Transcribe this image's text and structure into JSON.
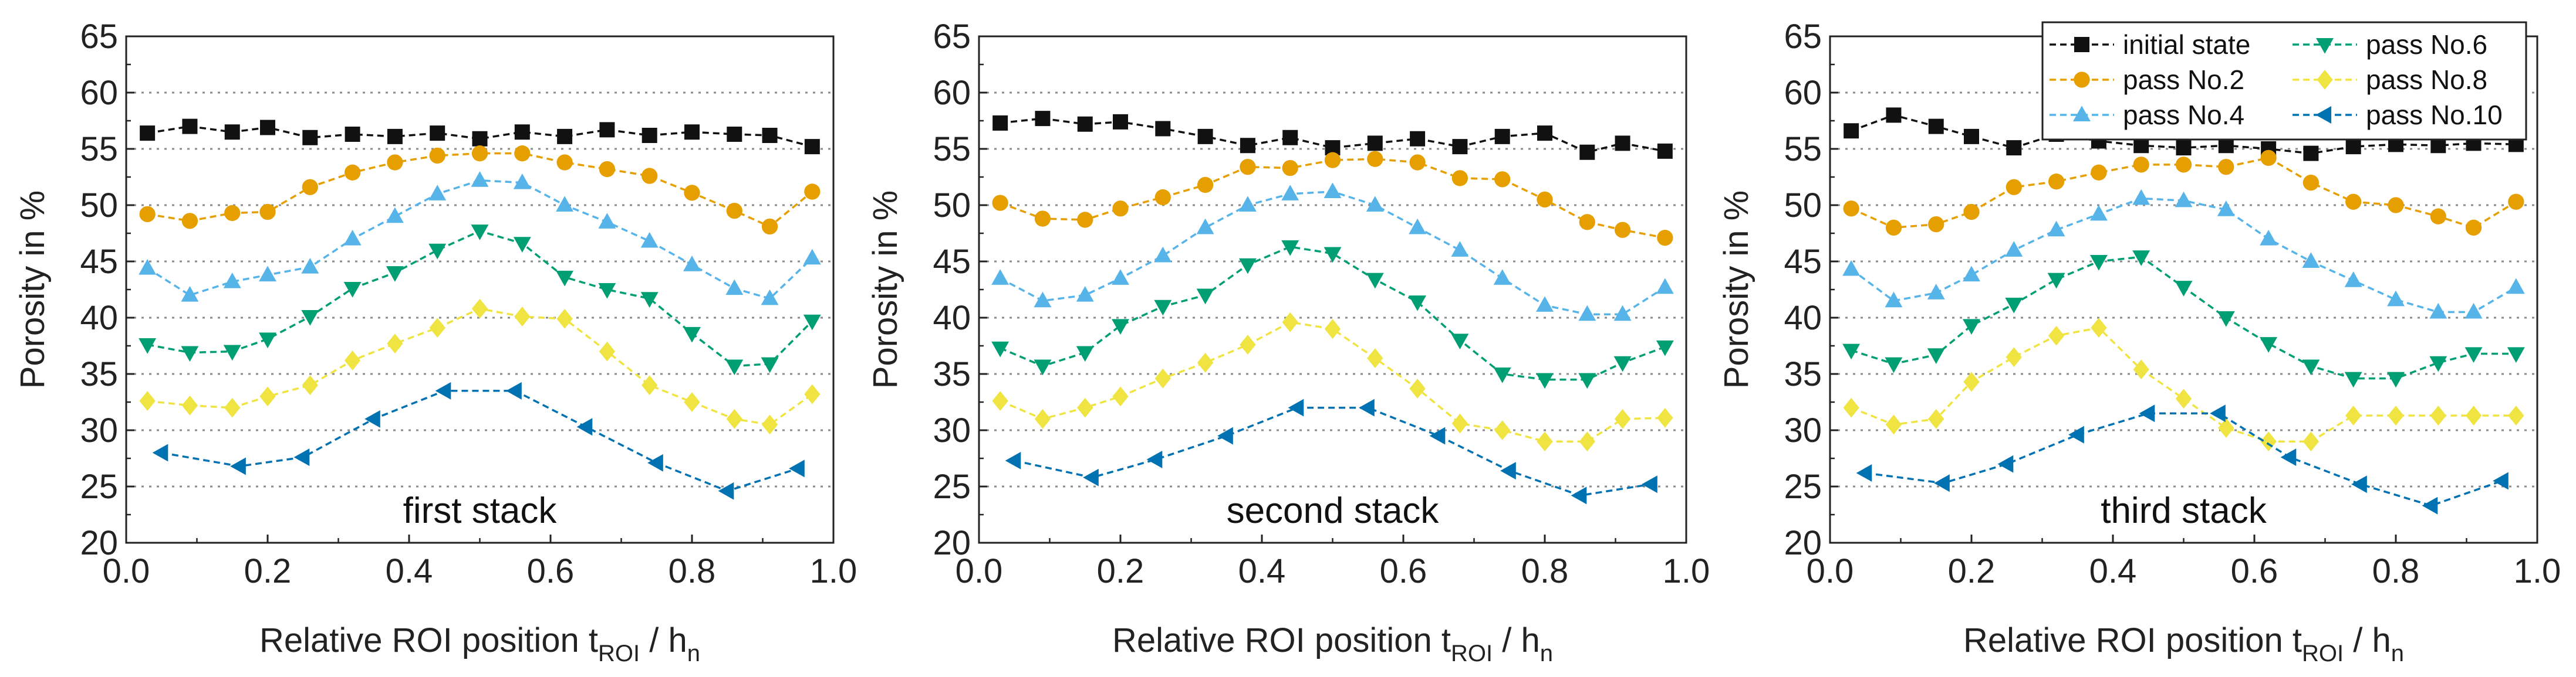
{
  "colors": {
    "initial": "#111111",
    "pass2": "#E69F00",
    "pass4": "#56B4E9",
    "pass6": "#009E73",
    "pass8": "#F0E442",
    "pass10": "#0072B2"
  },
  "chart_data": [
    {
      "type": "line",
      "title": "first stack",
      "xlabel_main": "Relative ROI position t",
      "xlabel_sub": "ROI",
      "xlabel_tail": " / h",
      "xlabel_sub2": "n",
      "ylabel": "Porosity in %",
      "xlim": [
        0,
        1
      ],
      "ylim": [
        20,
        65
      ],
      "xticks": [
        "0.0",
        "0.2",
        "0.4",
        "0.6",
        "0.8",
        "1.0"
      ],
      "yticks": [
        "20",
        "25",
        "30",
        "35",
        "40",
        "45",
        "50",
        "55",
        "60",
        "65"
      ],
      "series": [
        {
          "name": "initial state",
          "marker": "square",
          "color": "#111111",
          "x": [
            0.03,
            0.09,
            0.15,
            0.2,
            0.26,
            0.32,
            0.38,
            0.44,
            0.5,
            0.56,
            0.62,
            0.68,
            0.74,
            0.8,
            0.86,
            0.91,
            0.97
          ],
          "y": [
            56.4,
            57.0,
            56.5,
            56.9,
            56.0,
            56.3,
            56.1,
            56.4,
            55.9,
            56.5,
            56.1,
            56.7,
            56.2,
            56.5,
            56.3,
            56.2,
            55.2
          ]
        },
        {
          "name": "pass No.2",
          "marker": "circle",
          "color": "#E69F00",
          "x": [
            0.03,
            0.09,
            0.15,
            0.2,
            0.26,
            0.32,
            0.38,
            0.44,
            0.5,
            0.56,
            0.62,
            0.68,
            0.74,
            0.8,
            0.86,
            0.91,
            0.97
          ],
          "y": [
            49.2,
            48.6,
            49.3,
            49.4,
            51.6,
            52.9,
            53.8,
            54.4,
            54.6,
            54.6,
            53.8,
            53.2,
            52.6,
            51.1,
            49.5,
            48.1,
            51.2
          ]
        },
        {
          "name": "pass No.4",
          "marker": "triangle-up",
          "color": "#56B4E9",
          "x": [
            0.03,
            0.09,
            0.15,
            0.2,
            0.26,
            0.32,
            0.38,
            0.44,
            0.5,
            0.56,
            0.62,
            0.68,
            0.74,
            0.8,
            0.86,
            0.91,
            0.97
          ],
          "y": [
            44.4,
            42.0,
            43.2,
            43.8,
            44.5,
            47.0,
            49.0,
            51.0,
            52.2,
            52.0,
            50.0,
            48.5,
            46.8,
            44.7,
            42.6,
            41.7,
            45.3
          ]
        },
        {
          "name": "pass No.6",
          "marker": "triangle-down",
          "color": "#009E73",
          "x": [
            0.03,
            0.09,
            0.15,
            0.2,
            0.26,
            0.32,
            0.38,
            0.44,
            0.5,
            0.56,
            0.62,
            0.68,
            0.74,
            0.8,
            0.86,
            0.91,
            0.97
          ],
          "y": [
            37.6,
            36.9,
            37.0,
            38.1,
            40.1,
            42.6,
            44.0,
            46.0,
            47.7,
            46.6,
            43.6,
            42.5,
            41.7,
            38.6,
            35.7,
            35.9,
            39.7
          ]
        },
        {
          "name": "pass No.8",
          "marker": "diamond",
          "color": "#F0E442",
          "x": [
            0.03,
            0.09,
            0.15,
            0.2,
            0.26,
            0.32,
            0.38,
            0.44,
            0.5,
            0.56,
            0.62,
            0.68,
            0.74,
            0.8,
            0.86,
            0.91,
            0.97
          ],
          "y": [
            32.6,
            32.2,
            32.0,
            33.0,
            34.0,
            36.2,
            37.7,
            39.1,
            40.8,
            40.1,
            39.9,
            37.0,
            34.0,
            32.5,
            31.0,
            30.5,
            33.2
          ]
        },
        {
          "name": "pass No.10",
          "marker": "triangle-left",
          "color": "#0072B2",
          "x": [
            0.05,
            0.16,
            0.25,
            0.35,
            0.45,
            0.55,
            0.65,
            0.75,
            0.85,
            0.95
          ],
          "y": [
            28.0,
            26.8,
            27.6,
            31.0,
            33.5,
            33.5,
            30.3,
            27.1,
            24.6,
            26.6
          ]
        }
      ]
    },
    {
      "type": "line",
      "title": "second stack",
      "xlabel_main": "Relative ROI position t",
      "xlabel_sub": "ROI",
      "xlabel_tail": " / h",
      "xlabel_sub2": "n",
      "ylabel": "Porosity in %",
      "xlim": [
        0,
        1
      ],
      "ylim": [
        20,
        65
      ],
      "xticks": [
        "0.0",
        "0.2",
        "0.4",
        "0.6",
        "0.8",
        "1.0"
      ],
      "yticks": [
        "20",
        "25",
        "30",
        "35",
        "40",
        "45",
        "50",
        "55",
        "60",
        "65"
      ],
      "series": [
        {
          "name": "initial state",
          "marker": "square",
          "color": "#111111",
          "x": [
            0.03,
            0.09,
            0.15,
            0.2,
            0.26,
            0.32,
            0.38,
            0.44,
            0.5,
            0.56,
            0.62,
            0.68,
            0.74,
            0.8,
            0.86,
            0.91,
            0.97
          ],
          "y": [
            57.3,
            57.7,
            57.2,
            57.4,
            56.8,
            56.1,
            55.3,
            56.0,
            55.1,
            55.5,
            55.9,
            55.2,
            56.1,
            56.4,
            54.7,
            55.5,
            54.8
          ]
        },
        {
          "name": "pass No.2",
          "marker": "circle",
          "color": "#E69F00",
          "x": [
            0.03,
            0.09,
            0.15,
            0.2,
            0.26,
            0.32,
            0.38,
            0.44,
            0.5,
            0.56,
            0.62,
            0.68,
            0.74,
            0.8,
            0.86,
            0.91,
            0.97
          ],
          "y": [
            50.2,
            48.8,
            48.7,
            49.7,
            50.7,
            51.8,
            53.4,
            53.3,
            54.0,
            54.1,
            53.8,
            52.4,
            52.3,
            50.5,
            48.5,
            47.8,
            47.1
          ]
        },
        {
          "name": "pass No.4",
          "marker": "triangle-up",
          "color": "#56B4E9",
          "x": [
            0.03,
            0.09,
            0.15,
            0.2,
            0.26,
            0.32,
            0.38,
            0.44,
            0.5,
            0.56,
            0.62,
            0.68,
            0.74,
            0.8,
            0.86,
            0.91,
            0.97
          ],
          "y": [
            43.5,
            41.5,
            42.0,
            43.5,
            45.5,
            48.0,
            50.0,
            51.0,
            51.2,
            50.0,
            48.0,
            46.0,
            43.5,
            41.1,
            40.3,
            40.3,
            42.7
          ]
        },
        {
          "name": "pass No.6",
          "marker": "triangle-down",
          "color": "#009E73",
          "x": [
            0.03,
            0.09,
            0.15,
            0.2,
            0.26,
            0.32,
            0.38,
            0.44,
            0.5,
            0.56,
            0.62,
            0.68,
            0.74,
            0.8,
            0.86,
            0.91,
            0.97
          ],
          "y": [
            37.3,
            35.7,
            36.9,
            39.3,
            41.0,
            42.0,
            44.7,
            46.3,
            45.7,
            43.4,
            41.4,
            38.0,
            35.0,
            34.5,
            34.5,
            36.0,
            37.4
          ]
        },
        {
          "name": "pass No.8",
          "marker": "diamond",
          "color": "#F0E442",
          "x": [
            0.03,
            0.09,
            0.15,
            0.2,
            0.26,
            0.32,
            0.38,
            0.44,
            0.5,
            0.56,
            0.62,
            0.68,
            0.74,
            0.8,
            0.86,
            0.91,
            0.97
          ],
          "y": [
            32.6,
            31.0,
            32.0,
            33.0,
            34.6,
            36.0,
            37.6,
            39.6,
            39.0,
            36.4,
            33.7,
            30.6,
            30.0,
            29.0,
            29.0,
            31.0,
            31.1
          ]
        },
        {
          "name": "pass No.10",
          "marker": "triangle-left",
          "color": "#0072B2",
          "x": [
            0.05,
            0.16,
            0.25,
            0.35,
            0.45,
            0.55,
            0.65,
            0.75,
            0.85,
            0.95
          ],
          "y": [
            27.3,
            25.8,
            27.4,
            29.5,
            32.0,
            32.0,
            29.5,
            26.4,
            24.2,
            25.2
          ]
        }
      ]
    },
    {
      "type": "line",
      "title": "third stack",
      "xlabel_main": "Relative ROI position t",
      "xlabel_sub": "ROI",
      "xlabel_tail": " / h",
      "xlabel_sub2": "n",
      "ylabel": "Porosity in %",
      "xlim": [
        0,
        1
      ],
      "ylim": [
        20,
        65
      ],
      "xticks": [
        "0.0",
        "0.2",
        "0.4",
        "0.6",
        "0.8",
        "1.0"
      ],
      "yticks": [
        "20",
        "25",
        "30",
        "35",
        "40",
        "45",
        "50",
        "55",
        "60",
        "65"
      ],
      "legend": {
        "placement": "top-right",
        "entries": [
          "initial state",
          "pass No.2",
          "pass No.4",
          "pass No.6",
          "pass No.8",
          "pass No.10"
        ]
      },
      "series": [
        {
          "name": "initial state",
          "marker": "square",
          "color": "#111111",
          "x": [
            0.03,
            0.09,
            0.15,
            0.2,
            0.26,
            0.32,
            0.38,
            0.44,
            0.5,
            0.56,
            0.62,
            0.68,
            0.74,
            0.8,
            0.86,
            0.91,
            0.97
          ],
          "y": [
            56.6,
            58.0,
            57.0,
            56.1,
            55.1,
            56.3,
            55.7,
            55.3,
            55.1,
            55.3,
            55.0,
            54.6,
            55.2,
            55.4,
            55.3,
            55.5,
            55.4
          ]
        },
        {
          "name": "pass No.2",
          "marker": "circle",
          "color": "#E69F00",
          "x": [
            0.03,
            0.09,
            0.15,
            0.2,
            0.26,
            0.32,
            0.38,
            0.44,
            0.5,
            0.56,
            0.62,
            0.68,
            0.74,
            0.8,
            0.86,
            0.91,
            0.97
          ],
          "y": [
            49.7,
            48.0,
            48.3,
            49.4,
            51.6,
            52.1,
            52.9,
            53.6,
            53.6,
            53.4,
            54.2,
            52.0,
            50.3,
            50.0,
            49.0,
            48.0,
            50.3
          ]
        },
        {
          "name": "pass No.4",
          "marker": "triangle-up",
          "color": "#56B4E9",
          "x": [
            0.03,
            0.09,
            0.15,
            0.2,
            0.26,
            0.32,
            0.38,
            0.44,
            0.5,
            0.56,
            0.62,
            0.68,
            0.74,
            0.8,
            0.86,
            0.91,
            0.97
          ],
          "y": [
            44.3,
            41.5,
            42.2,
            43.8,
            46.0,
            47.8,
            49.2,
            50.6,
            50.4,
            49.6,
            47.0,
            45.0,
            43.3,
            41.6,
            40.5,
            40.5,
            42.7
          ]
        },
        {
          "name": "pass No.6",
          "marker": "triangle-down",
          "color": "#009E73",
          "x": [
            0.03,
            0.09,
            0.15,
            0.2,
            0.26,
            0.32,
            0.38,
            0.44,
            0.5,
            0.56,
            0.62,
            0.68,
            0.74,
            0.8,
            0.86,
            0.91,
            0.97
          ],
          "y": [
            37.1,
            35.9,
            36.7,
            39.3,
            41.2,
            43.4,
            45.0,
            45.4,
            42.7,
            40.0,
            37.7,
            35.7,
            34.6,
            34.6,
            36.0,
            36.8,
            36.8
          ]
        },
        {
          "name": "pass No.8",
          "marker": "diamond",
          "color": "#F0E442",
          "x": [
            0.03,
            0.09,
            0.15,
            0.2,
            0.26,
            0.32,
            0.38,
            0.44,
            0.5,
            0.56,
            0.62,
            0.68,
            0.74,
            0.8,
            0.86,
            0.91,
            0.97
          ],
          "y": [
            32.0,
            30.5,
            31.0,
            34.3,
            36.5,
            38.4,
            39.1,
            35.4,
            32.8,
            30.2,
            29.0,
            29.0,
            31.3,
            31.3,
            31.3,
            31.3,
            31.3
          ]
        },
        {
          "name": "pass No.10",
          "marker": "triangle-left",
          "color": "#0072B2",
          "x": [
            0.05,
            0.16,
            0.25,
            0.35,
            0.45,
            0.55,
            0.65,
            0.75,
            0.85,
            0.95
          ],
          "y": [
            26.2,
            25.3,
            27.0,
            29.6,
            31.5,
            31.5,
            27.6,
            25.2,
            23.3,
            25.5
          ]
        }
      ]
    }
  ]
}
